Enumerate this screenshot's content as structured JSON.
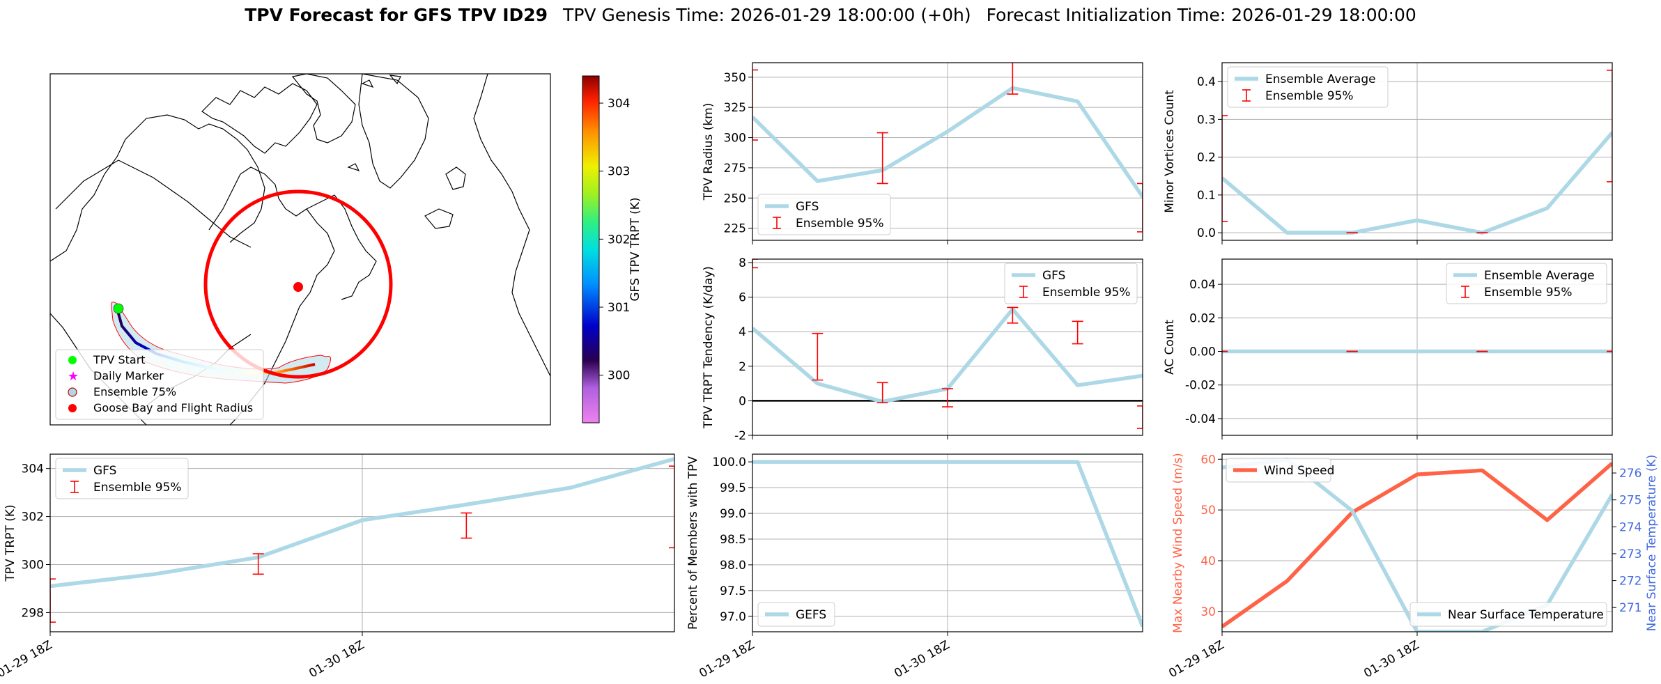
{
  "figure_title": {
    "main": "TPV Forecast for GFS TPV ID29",
    "genesis": "TPV Genesis Time: 2026-01-29 18:00:00 (+0h)",
    "init": "Forecast Initialization Time: 2026-01-29 18:00:00"
  },
  "colors": {
    "gfs_line": "#add8e6",
    "ensemble_err": "#ff0000",
    "wind": "#ff6347",
    "temp_axis": "#4169e1",
    "grid": "#b0b0b0"
  },
  "map": {
    "legend": [
      "TPV Start",
      "Daily Marker",
      "Ensemble 75%",
      "Goose Bay and Flight Radius"
    ],
    "colorbar": {
      "label": "GFS TPV TRPT (K)",
      "ticks": [
        "300",
        "301",
        "302",
        "303",
        "304"
      ],
      "range": [
        299.3,
        304.4
      ]
    }
  },
  "x_ticks": [
    "01-29 18Z",
    "01-30 18Z"
  ],
  "chart_data": [
    {
      "id": "radius",
      "type": "line",
      "ylabel": "TPV Radius (km)",
      "ylim": [
        215,
        362
      ],
      "yticks": [
        225,
        250,
        275,
        300,
        325,
        350
      ],
      "x": [
        0,
        1,
        2,
        3,
        4,
        5,
        6
      ],
      "series": [
        {
          "name": "GFS",
          "values": [
            317,
            264,
            273,
            305,
            341,
            330,
            251
          ]
        }
      ],
      "ensemble_95": [
        [
          298,
          356
        ],
        null,
        [
          262,
          304
        ],
        null,
        [
          336,
          366
        ],
        null,
        [
          222,
          262
        ]
      ],
      "legend": [
        "GFS",
        "Ensemble 95%"
      ],
      "legend_position": "bottom-left"
    },
    {
      "id": "minor",
      "type": "line",
      "ylabel": "Minor Vortices Count",
      "ylim": [
        -0.02,
        0.45
      ],
      "yticks": [
        0.0,
        0.1,
        0.2,
        0.3,
        0.4
      ],
      "x": [
        0,
        1,
        2,
        3,
        4,
        5,
        6
      ],
      "series": [
        {
          "name": "Ensemble Average",
          "values": [
            0.145,
            0.0,
            0.0,
            0.033,
            0.0,
            0.065,
            0.265
          ]
        }
      ],
      "ensemble_95": [
        [
          0.03,
          0.31
        ],
        null,
        [
          0.0,
          0.0
        ],
        null,
        [
          0.0,
          0.0
        ],
        null,
        [
          0.135,
          0.43
        ]
      ],
      "legend": [
        "Ensemble Average",
        "Ensemble 95%"
      ],
      "legend_position": "top-left"
    },
    {
      "id": "tendency",
      "type": "line",
      "ylabel": "TPV TRPT Tendency (K/day)",
      "ylim": [
        -2,
        8.2
      ],
      "yticks": [
        -2,
        0,
        2,
        4,
        6,
        8
      ],
      "x": [
        0,
        1,
        2,
        3,
        4,
        5,
        6
      ],
      "series": [
        {
          "name": "GFS",
          "values": [
            4.2,
            1.0,
            -0.05,
            0.7,
            5.3,
            0.9,
            1.45
          ]
        }
      ],
      "ensemble_95": [
        [
          7.7,
          8.2
        ],
        [
          1.2,
          3.9
        ],
        [
          -0.1,
          1.05
        ],
        [
          -0.35,
          0.7
        ],
        [
          4.5,
          5.4
        ],
        [
          3.3,
          4.6
        ],
        [
          -1.6,
          -0.3
        ]
      ],
      "zero_line": true,
      "legend": [
        "GFS",
        "Ensemble 95%"
      ],
      "legend_position": "top-right"
    },
    {
      "id": "ac",
      "type": "line",
      "ylabel": "AC Count",
      "ylim": [
        -0.05,
        0.055
      ],
      "yticks": [
        -0.04,
        -0.02,
        0.0,
        0.02,
        0.04
      ],
      "x": [
        0,
        1,
        2,
        3,
        4,
        5,
        6
      ],
      "series": [
        {
          "name": "Ensemble Average",
          "values": [
            0,
            0,
            0,
            0,
            0,
            0,
            0
          ]
        }
      ],
      "ensemble_95": [
        [
          0,
          0
        ],
        null,
        [
          0,
          0
        ],
        null,
        [
          0,
          0
        ],
        null,
        [
          0,
          0
        ]
      ],
      "legend": [
        "Ensemble Average",
        "Ensemble 95%"
      ],
      "legend_position": "top-right"
    },
    {
      "id": "trpt",
      "type": "line",
      "ylabel": "TPV TRPT (K)",
      "ylim": [
        297.2,
        304.6
      ],
      "yticks": [
        298,
        300,
        302,
        304
      ],
      "x": [
        0,
        1,
        2,
        3,
        4,
        5,
        6
      ],
      "series": [
        {
          "name": "GFS",
          "values": [
            299.1,
            299.6,
            300.3,
            301.85,
            302.5,
            303.2,
            304.4
          ]
        }
      ],
      "ensemble_95": [
        [
          297.6,
          299.4
        ],
        null,
        [
          299.6,
          300.45
        ],
        null,
        [
          301.1,
          302.15
        ],
        null,
        [
          300.7,
          304.1
        ]
      ],
      "legend": [
        "GFS",
        "Ensemble 95%"
      ],
      "legend_position": "top-left"
    },
    {
      "id": "members",
      "type": "line",
      "ylabel": "Percent of Members with TPV",
      "ylim": [
        96.7,
        100.15
      ],
      "yticks": [
        97.0,
        97.5,
        98.0,
        98.5,
        99.0,
        99.5,
        100.0
      ],
      "x": [
        0,
        1,
        2,
        3,
        4,
        5,
        6
      ],
      "series": [
        {
          "name": "GEFS",
          "values": [
            100,
            100,
            100,
            100,
            100,
            100,
            96.8
          ]
        }
      ],
      "legend": [
        "GEFS"
      ],
      "legend_position": "bottom-left"
    },
    {
      "id": "wind",
      "type": "line",
      "ylabel": "Max Nearby Wind Speed (m/s)",
      "ylabel_right": "Near Surface Temperature (K)",
      "ylim": [
        26,
        61
      ],
      "yticks": [
        30,
        40,
        50,
        60
      ],
      "ylim_right": [
        270.1,
        276.7
      ],
      "yticks_right": [
        271,
        272,
        273,
        274,
        275,
        276
      ],
      "x": [
        0,
        1,
        2,
        3,
        4,
        5,
        6
      ],
      "series": [
        {
          "name": "Wind Speed",
          "axis": "left",
          "values": [
            27,
            36,
            49.5,
            57,
            57.8,
            48,
            59.2
          ]
        },
        {
          "name": "Near Surface Temperature",
          "axis": "right",
          "values": [
            276.2,
            276.5,
            274.6,
            270.1,
            270.1,
            271.1,
            275.2
          ]
        }
      ],
      "legend": [
        "Wind Speed",
        "Near Surface Temperature"
      ]
    }
  ]
}
